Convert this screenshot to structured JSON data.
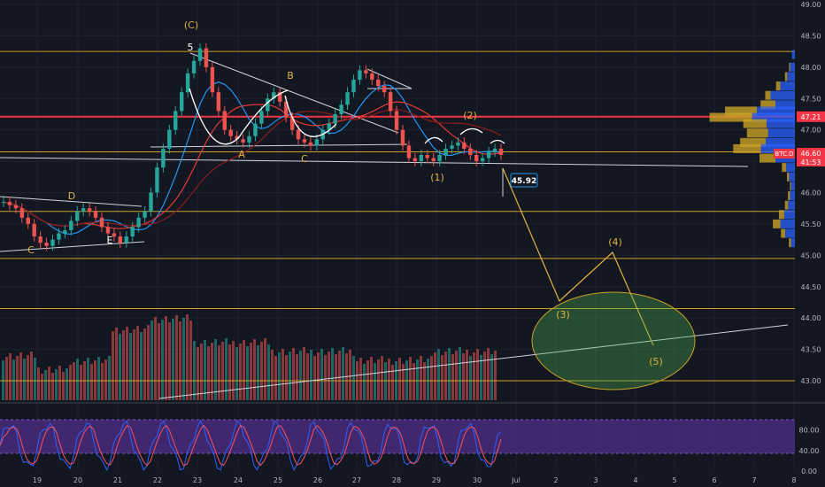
{
  "chart_data": {
    "type": "candlestick",
    "symbol": "BTC.D",
    "price_axis": {
      "ticks": [
        "49.00",
        "48.50",
        "48.00",
        "47.50",
        "47.00",
        "46.50",
        "46.00",
        "45.50",
        "45.00",
        "44.50",
        "44.00",
        "43.50",
        "43.00"
      ],
      "range": [
        42.8,
        49.1
      ]
    },
    "stoch_axis": {
      "ticks": [
        "80.00",
        "40.00",
        "0.00"
      ],
      "range": [
        0,
        100
      ]
    },
    "time_axis": {
      "ticks": [
        "19",
        "20",
        "21",
        "22",
        "23",
        "24",
        "25",
        "26",
        "27",
        "28",
        "29",
        "30",
        "Jul",
        "2",
        "3",
        "4",
        "5",
        "6",
        "7",
        "8"
      ]
    },
    "last_price": {
      "value": 46.6,
      "label": "BTC.D",
      "price_text": "46.60",
      "countdown": "41:53"
    },
    "resistance": {
      "value": 47.21,
      "label": "47.21"
    },
    "target_box": {
      "value": 45.92,
      "label": "45.92"
    },
    "horizontal_levels": [
      48.25,
      46.65,
      45.7,
      44.95,
      44.15,
      43.0
    ],
    "close_series": [
      45.85,
      45.8,
      45.75,
      45.6,
      45.5,
      45.3,
      45.2,
      45.15,
      45.25,
      45.35,
      45.4,
      45.55,
      45.7,
      45.75,
      45.7,
      45.6,
      45.45,
      45.35,
      45.3,
      45.2,
      45.3,
      45.45,
      45.6,
      45.7,
      46.0,
      46.4,
      46.7,
      47.0,
      47.3,
      47.6,
      47.9,
      48.1,
      48.3,
      48.0,
      47.6,
      47.3,
      47.0,
      46.9,
      46.85,
      46.8,
      46.9,
      47.1,
      47.3,
      47.5,
      47.6,
      47.45,
      47.2,
      47.0,
      46.85,
      46.8,
      46.75,
      46.85,
      47.0,
      47.1,
      47.25,
      47.4,
      47.6,
      47.8,
      47.95,
      47.9,
      47.8,
      47.7,
      47.6,
      47.3,
      47.0,
      46.75,
      46.55,
      46.5,
      46.6,
      46.55,
      46.5,
      46.6,
      46.7,
      46.75,
      46.8,
      46.7,
      46.6,
      46.5,
      46.55,
      46.65,
      46.7,
      46.6
    ],
    "forecast_path": [
      {
        "date": "30.7",
        "price": 45.95
      },
      {
        "date": "Jul+1.2",
        "price": 44.2
      },
      {
        "date": "3.5",
        "price": 45.0
      },
      {
        "date": "4.5",
        "price": 43.6
      }
    ],
    "elliott_labels": [
      "(C)",
      "5",
      "B",
      "A",
      "C",
      "D",
      "C",
      "E",
      "(1)",
      "(2)",
      "(3)",
      "(4)",
      "(5)"
    ],
    "volume_profile_present": true,
    "indicators": [
      "EMA",
      "SMA",
      "Volume",
      "Stochastic RSI"
    ]
  },
  "colors": {
    "background": "#131722",
    "up": "#26a69a",
    "down": "#ef5350",
    "level": "#c9a227",
    "resistance": "#f23645",
    "wave": "#e3b341",
    "stoch_k": "#2962ff",
    "stoch_d": "#f7525f",
    "stoch_band": "#4a2a7a"
  }
}
